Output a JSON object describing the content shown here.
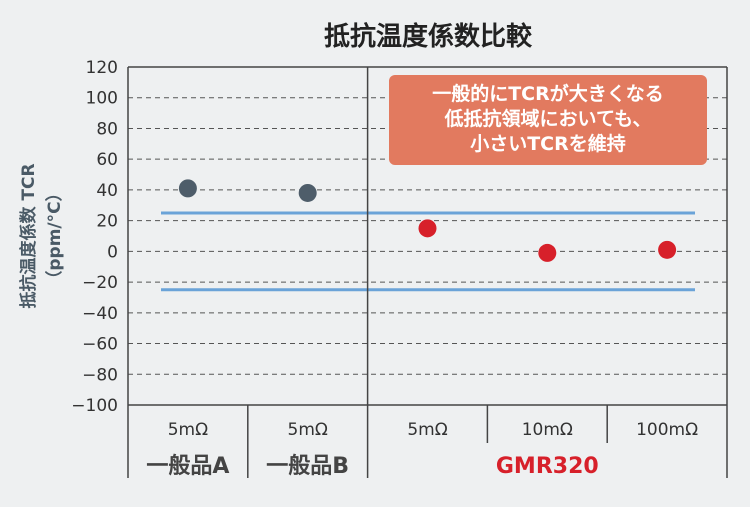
{
  "chart_data": {
    "type": "scatter",
    "title": "抵抗温度係数比較",
    "ylabel": "抵抗温度係数 TCR\n（ppm/°C）",
    "ylim": [
      -100,
      120
    ],
    "yticks": [
      120,
      100,
      80,
      60,
      40,
      20,
      0,
      -20,
      -40,
      -60,
      -80,
      -100
    ],
    "grid": true,
    "categories": [
      "5mΩ",
      "5mΩ",
      "5mΩ",
      "10mΩ",
      "100mΩ"
    ],
    "groups": [
      {
        "label": "一般品A",
        "span": [
          0,
          0
        ],
        "color": "#444444"
      },
      {
        "label": "一般品B",
        "span": [
          1,
          1
        ],
        "color": "#444444"
      },
      {
        "label": "GMR320",
        "span": [
          2,
          4
        ],
        "color": "#d7202a"
      }
    ],
    "points": [
      {
        "category_index": 0,
        "value": 41,
        "color": "#4e5d6a"
      },
      {
        "category_index": 1,
        "value": 38,
        "color": "#4e5d6a"
      },
      {
        "category_index": 2,
        "value": 15,
        "color": "#d7202a"
      },
      {
        "category_index": 3,
        "value": -1,
        "color": "#d7202a"
      },
      {
        "category_index": 4,
        "value": 1,
        "color": "#d7202a"
      }
    ],
    "reference_lines": [
      {
        "value": 25,
        "color": "#6aa3d8"
      },
      {
        "value": -25,
        "color": "#6aa3d8"
      }
    ],
    "annotation": {
      "lines": [
        "一般的にTCRが大きくなる",
        "低抵抗領域においても、",
        "小さいTCRを維持"
      ],
      "background": "#e27a5f"
    }
  }
}
